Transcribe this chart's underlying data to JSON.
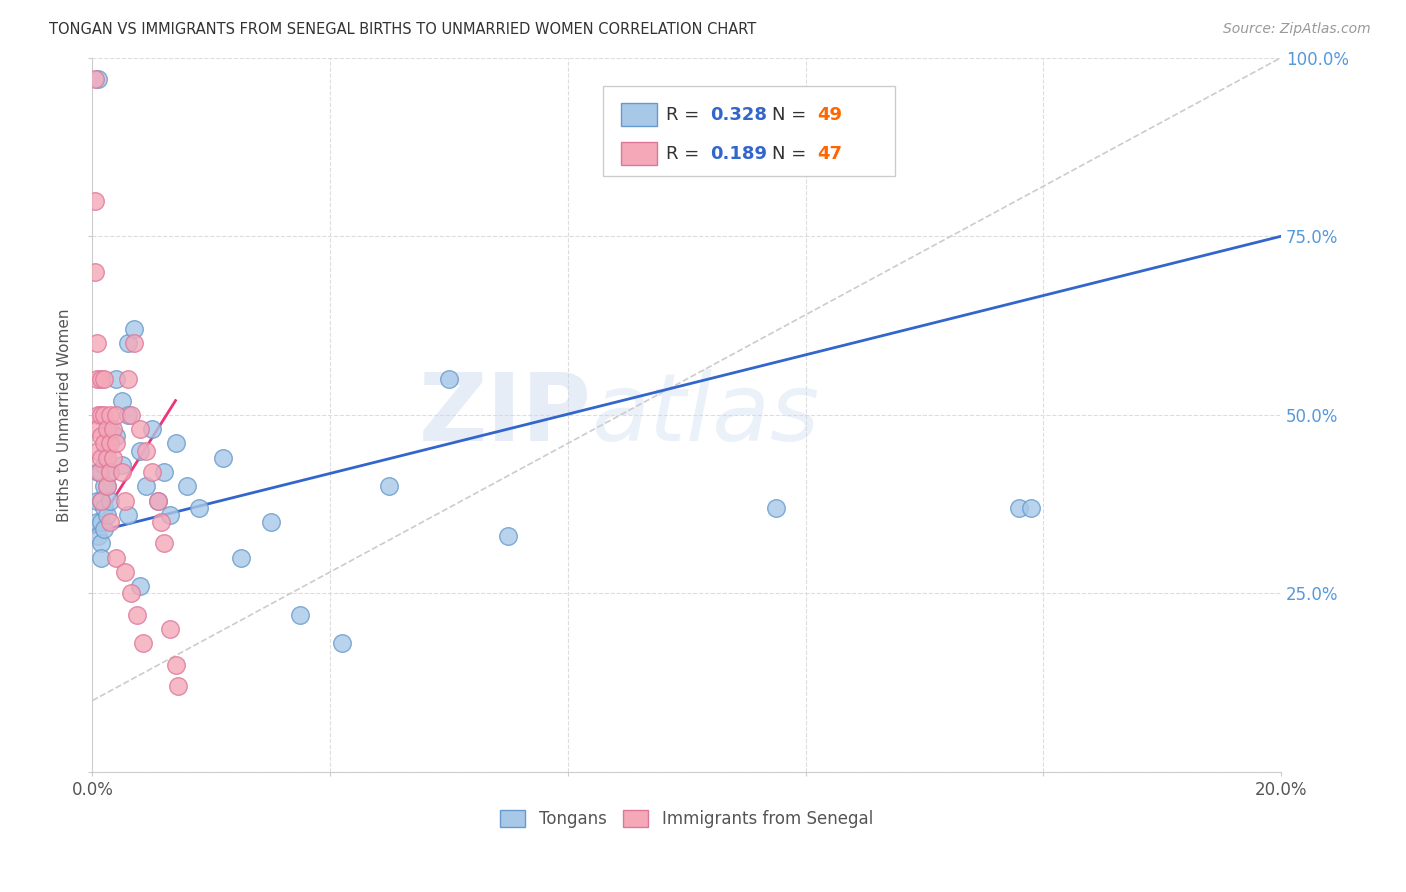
{
  "title": "TONGAN VS IMMIGRANTS FROM SENEGAL BIRTHS TO UNMARRIED WOMEN CORRELATION CHART",
  "source": "Source: ZipAtlas.com",
  "ylabel": "Births to Unmarried Women",
  "xlim": [
    0.0,
    0.2
  ],
  "ylim": [
    0.0,
    1.0
  ],
  "xticks": [
    0.0,
    0.04,
    0.08,
    0.12,
    0.16,
    0.2
  ],
  "xticklabels": [
    "0.0%",
    "",
    "",
    "",
    "",
    "20.0%"
  ],
  "yticks": [
    0.0,
    0.25,
    0.5,
    0.75,
    1.0
  ],
  "yticklabels_right": [
    "",
    "25.0%",
    "50.0%",
    "75.0%",
    "100.0%"
  ],
  "blue_R": 0.328,
  "blue_N": 49,
  "pink_R": 0.189,
  "pink_N": 47,
  "blue_color": "#A8C8E8",
  "pink_color": "#F4A8B8",
  "blue_edge": "#6699CC",
  "pink_edge": "#DD7799",
  "line_blue": "#3366CC",
  "line_pink": "#EE3377",
  "line_grey": "#CCCCCC",
  "background": "#FFFFFF",
  "grid_color": "#DDDDDD",
  "legend_R_color": "#3366CC",
  "legend_N_color": "#FF6600",
  "blue_x": [
    0.0008,
    0.0008,
    0.001,
    0.001,
    0.001,
    0.0015,
    0.0015,
    0.0015,
    0.0015,
    0.0015,
    0.002,
    0.002,
    0.002,
    0.002,
    0.0025,
    0.0025,
    0.0025,
    0.003,
    0.003,
    0.003,
    0.004,
    0.004,
    0.005,
    0.005,
    0.006,
    0.006,
    0.007,
    0.008,
    0.009,
    0.01,
    0.011,
    0.012,
    0.013,
    0.014,
    0.016,
    0.018,
    0.022,
    0.025,
    0.03,
    0.035,
    0.042,
    0.05,
    0.06,
    0.07,
    0.115,
    0.156,
    0.158,
    0.008,
    0.006
  ],
  "blue_y": [
    0.38,
    0.35,
    0.97,
    0.42,
    0.33,
    0.42,
    0.38,
    0.35,
    0.32,
    0.3,
    0.43,
    0.4,
    0.37,
    0.34,
    0.45,
    0.4,
    0.36,
    0.48,
    0.42,
    0.38,
    0.55,
    0.47,
    0.52,
    0.43,
    0.6,
    0.5,
    0.62,
    0.45,
    0.4,
    0.48,
    0.38,
    0.42,
    0.36,
    0.46,
    0.4,
    0.37,
    0.44,
    0.3,
    0.35,
    0.22,
    0.18,
    0.4,
    0.55,
    0.33,
    0.37,
    0.37,
    0.37,
    0.26,
    0.36
  ],
  "pink_x": [
    0.0005,
    0.0005,
    0.0005,
    0.0008,
    0.0008,
    0.001,
    0.001,
    0.001,
    0.0012,
    0.0015,
    0.0015,
    0.0015,
    0.0015,
    0.0015,
    0.002,
    0.002,
    0.002,
    0.0025,
    0.0025,
    0.0025,
    0.003,
    0.003,
    0.003,
    0.0035,
    0.0035,
    0.004,
    0.004,
    0.005,
    0.0055,
    0.006,
    0.0065,
    0.007,
    0.008,
    0.009,
    0.01,
    0.011,
    0.0115,
    0.012,
    0.013,
    0.014,
    0.0145,
    0.003,
    0.004,
    0.0055,
    0.0065,
    0.0075,
    0.0085
  ],
  "pink_y": [
    0.97,
    0.8,
    0.7,
    0.6,
    0.55,
    0.5,
    0.48,
    0.45,
    0.42,
    0.55,
    0.5,
    0.47,
    0.44,
    0.38,
    0.55,
    0.5,
    0.46,
    0.48,
    0.44,
    0.4,
    0.5,
    0.46,
    0.42,
    0.48,
    0.44,
    0.5,
    0.46,
    0.42,
    0.38,
    0.55,
    0.5,
    0.6,
    0.48,
    0.45,
    0.42,
    0.38,
    0.35,
    0.32,
    0.2,
    0.15,
    0.12,
    0.35,
    0.3,
    0.28,
    0.25,
    0.22,
    0.18
  ],
  "watermark_line1": "ZIP",
  "watermark_line2": "atlas",
  "blue_trend": [
    0.0,
    0.2,
    0.335,
    0.75
  ],
  "pink_trend": [
    0.0,
    0.014,
    0.335,
    0.52
  ],
  "grey_trend": [
    0.0,
    0.2,
    0.1,
    1.0
  ]
}
